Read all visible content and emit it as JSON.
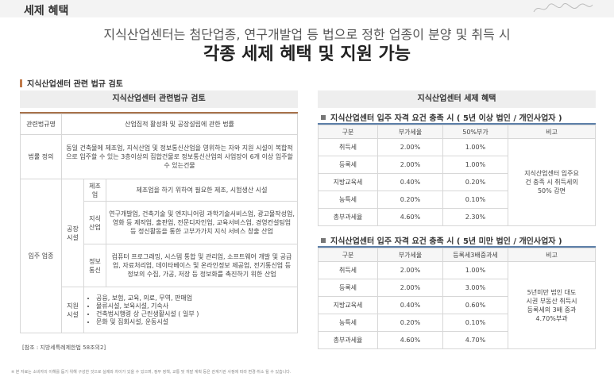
{
  "header": {
    "section_tag": "세제 혜택",
    "headline_line1": "지식산업센터는 첨단업종, 연구개발업 등 법으로 정한 업종이 분양 및 취득 시",
    "headline_line2": "각종 세제 혜택 및 지원 가능"
  },
  "left": {
    "subsection_title": "지식산업센터 관련 법규 검토",
    "box_title": "지식산업센터 관련법규 검토",
    "rows": {
      "law": {
        "label": "관련법규명",
        "value": "산업집적 활성화 및 공장설립에 관한 법률"
      },
      "definition": {
        "label": "법률 정의",
        "value": "동일 건축물에 제조업, 지식산업 및 정보통신산업을 영위하는 자와 지원 시설이 복합적으로 입주할 수 있는 3층이상의 집합건물로 정보통신산업의 사업장이 6개 이상 입주할 수 있는건물"
      },
      "tenant": {
        "label": "입주 업종",
        "factory": {
          "label": "공장 시설",
          "manufacturing": {
            "label": "제조업",
            "value": "제조업을 하기 위하여 필요한 제조, 시험생산 시설"
          },
          "knowledge": {
            "label": "지식 산업",
            "value": "연구개발업, 건축기술 및 엔지니어링 과학기술서비스업, 광고물작성업, 영화 등 제작업, 출판업, 전문디자인업, 교육서비스업, 경영컨설팅업 등 정신활동을 통한 고부가가치 지식 서비스 창출 산업"
          },
          "info": {
            "label": "정보 통신",
            "value": "컴퓨터 프로그래밍, 시스템 통합 및 관리업, 소프트웨어 개발 및 공급업, 자료처리업, 데이타베이스 및 온라인정보 제공업, 전기통신업 등 정보의 수집, 가공, 저장 등 정보화를 촉진하기 위한 산업"
          }
        },
        "support": {
          "label": "지원 시설",
          "items": [
            "공융, 보험, 교육, 의료, 무역, 판매업",
            "물류시설, 보육시설, 기숙사",
            "건축법시행령 상 근린생활시설 ( 일부 )",
            "문화 및 집회시설, 운동시설"
          ]
        }
      }
    },
    "source_note": "[참조 : 지방세특례제한법 58조의2]"
  },
  "right": {
    "box_title": "지식산업센터 세제 혜택",
    "table1": {
      "title": "지식산업센터 입주 자격 요건 충족 시 ( 5년 이상 법인 / 개인사업자 )",
      "headers": [
        "구분",
        "부가세율",
        "50%부가",
        "비고"
      ],
      "rows": [
        [
          "취득세",
          "2.00%",
          "1.00%"
        ],
        [
          "등록세",
          "2.00%",
          "1.00%"
        ],
        [
          "지방교육세",
          "0.40%",
          "0.20%"
        ],
        [
          "농특세",
          "0.20%",
          "0.10%"
        ],
        [
          "총부과세율",
          "4.60%",
          "2.30%"
        ]
      ],
      "remark": "지식산업센터 입주요건 충족 시 취득세의 50% 감면"
    },
    "table2": {
      "title": "지식산업센터 입주 자격 요건 충족 시 ( 5년 미만 법인 / 개인사업자 )",
      "headers": [
        "구분",
        "부가세율",
        "등록세3배중과세",
        "비고"
      ],
      "rows": [
        [
          "취득세",
          "2.00%",
          "1.00%"
        ],
        [
          "등록세",
          "2.00%",
          "3.00%"
        ],
        [
          "지방교육세",
          "0.40%",
          "0.60%"
        ],
        [
          "농특세",
          "0.20%",
          "0.10%"
        ],
        [
          "총부과세율",
          "4.60%",
          "4.70%"
        ]
      ],
      "remark": "5년미만 법인 대도시권 부동산 취득시 등록세의 3배 중과 4.70%부과"
    }
  },
  "footer": {
    "disclaimer": "※ 본 자료는 소비자의 이해를 돕기 위해 구성한 것으로 실제와 차이가 있을 수 있으며, 정부 정책, 교통 및 개발 계획 등은 관계기관 사정에 따라 변경·취소 될 수 있습니다."
  },
  "colors": {
    "accent_brown": "#a9734b",
    "accent_blue": "#5d7fa8",
    "header_gray": "#eeeeee"
  }
}
